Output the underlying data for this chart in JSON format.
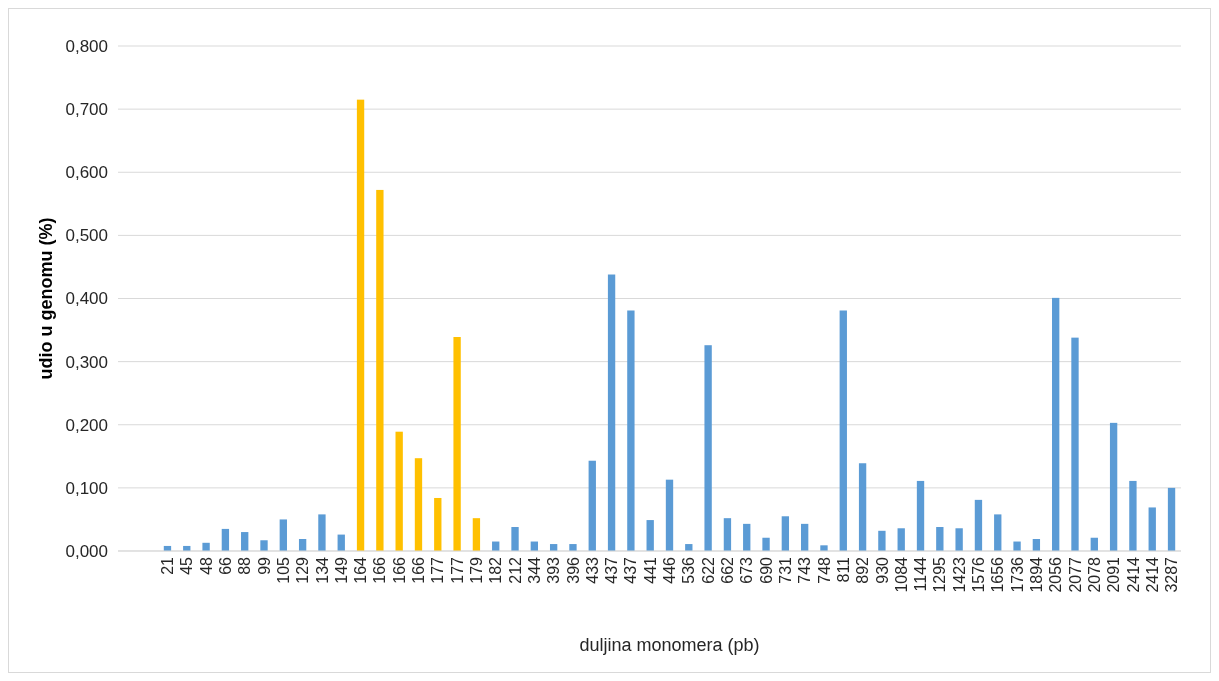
{
  "chart_data": {
    "type": "bar",
    "xlabel": "duljina monomera (pb)",
    "ylabel": "udio u genomu (%)",
    "categories": [
      "21",
      "45",
      "48",
      "66",
      "88",
      "99",
      "105",
      "129",
      "134",
      "149",
      "164",
      "166",
      "166",
      "166",
      "177",
      "177",
      "179",
      "182",
      "212",
      "344",
      "393",
      "396",
      "433",
      "437",
      "437",
      "441",
      "446",
      "536",
      "622",
      "662",
      "673",
      "690",
      "731",
      "743",
      "748",
      "811",
      "892",
      "930",
      "1084",
      "1144",
      "1295",
      "1423",
      "1576",
      "1656",
      "1736",
      "1894",
      "2056",
      "2077",
      "2078",
      "2091",
      "2414",
      "2414",
      "3287"
    ],
    "values": [
      0.008,
      0.008,
      0.013,
      0.035,
      0.03,
      0.017,
      0.05,
      0.019,
      0.058,
      0.026,
      0.715,
      0.572,
      0.189,
      0.147,
      0.084,
      0.339,
      0.052,
      0.015,
      0.038,
      0.015,
      0.011,
      0.011,
      0.143,
      0.438,
      0.381,
      0.049,
      0.113,
      0.011,
      0.326,
      0.052,
      0.043,
      0.021,
      0.055,
      0.043,
      0.009,
      0.381,
      0.139,
      0.032,
      0.036,
      0.111,
      0.038,
      0.036,
      0.081,
      0.058,
      0.015,
      0.019,
      0.401,
      0.338,
      0.021,
      0.203,
      0.111,
      0.069,
      0.1
    ],
    "colors": [
      "#5b9bd5",
      "#5b9bd5",
      "#5b9bd5",
      "#5b9bd5",
      "#5b9bd5",
      "#5b9bd5",
      "#5b9bd5",
      "#5b9bd5",
      "#5b9bd5",
      "#5b9bd5",
      "#ffc000",
      "#ffc000",
      "#ffc000",
      "#ffc000",
      "#ffc000",
      "#ffc000",
      "#ffc000",
      "#5b9bd5",
      "#5b9bd5",
      "#5b9bd5",
      "#5b9bd5",
      "#5b9bd5",
      "#5b9bd5",
      "#5b9bd5",
      "#5b9bd5",
      "#5b9bd5",
      "#5b9bd5",
      "#5b9bd5",
      "#5b9bd5",
      "#5b9bd5",
      "#5b9bd5",
      "#5b9bd5",
      "#5b9bd5",
      "#5b9bd5",
      "#5b9bd5",
      "#5b9bd5",
      "#5b9bd5",
      "#5b9bd5",
      "#5b9bd5",
      "#5b9bd5",
      "#5b9bd5",
      "#5b9bd5",
      "#5b9bd5",
      "#5b9bd5",
      "#5b9bd5",
      "#5b9bd5",
      "#5b9bd5",
      "#5b9bd5",
      "#5b9bd5",
      "#5b9bd5",
      "#5b9bd5",
      "#5b9bd5",
      "#5b9bd5"
    ],
    "ylim": [
      0,
      0.8
    ],
    "yticks": [
      {
        "value": 0,
        "label": "0,000"
      },
      {
        "value": 0.1,
        "label": "0,100"
      },
      {
        "value": 0.2,
        "label": "0,200"
      },
      {
        "value": 0.3,
        "label": "0,300"
      },
      {
        "value": 0.4,
        "label": "0,400"
      },
      {
        "value": 0.5,
        "label": "0,500"
      },
      {
        "value": 0.6,
        "label": "0,600"
      },
      {
        "value": 0.7,
        "label": "0,700"
      },
      {
        "value": 0.8,
        "label": "0,800"
      }
    ],
    "grid": "y"
  }
}
